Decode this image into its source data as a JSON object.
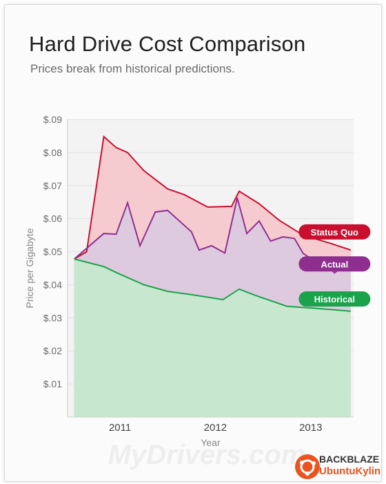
{
  "header": {
    "title": "Hard Drive Cost Comparison",
    "subtitle": "Prices break from historical predictions."
  },
  "colors": {
    "status_quo": "#c8102e",
    "actual": "#8e2f8f",
    "historical": "#1aa34a",
    "status_quo_fill": "#f6c6cc",
    "actual_fill": "#dcc9df",
    "historical_fill": "#c7e8cf"
  },
  "watermark": {
    "text": "MyDrivers.com",
    "brand_top": "BACKBLAZE",
    "brand_bottom": "UbuntuKylin"
  },
  "chart_data": {
    "type": "area",
    "title": "Hard Drive Cost Comparison",
    "subtitle": "Prices break from historical predictions.",
    "xlabel": "Year",
    "ylabel": "Price per Gigabyte",
    "xlim": [
      2010.45,
      2013.45
    ],
    "ylim": [
      0,
      0.09
    ],
    "y_ticks": [
      {
        "value": 0.01,
        "label": "$.01"
      },
      {
        "value": 0.02,
        "label": "$.02"
      },
      {
        "value": 0.03,
        "label": "$.03"
      },
      {
        "value": 0.04,
        "label": "$.04"
      },
      {
        "value": 0.05,
        "label": "$.05"
      },
      {
        "value": 0.06,
        "label": "$.06"
      },
      {
        "value": 0.07,
        "label": "$.07"
      },
      {
        "value": 0.08,
        "label": "$.08"
      },
      {
        "value": 0.09,
        "label": "$.09"
      }
    ],
    "x_ticks": [
      {
        "value": 2011,
        "label": "2011"
      },
      {
        "value": 2012,
        "label": "2012"
      },
      {
        "value": 2013,
        "label": "2013"
      }
    ],
    "grid": true,
    "legend": "inline-right",
    "series": [
      {
        "name": "Status Quo",
        "color_key": "status_quo",
        "points": [
          [
            2010.52,
            0.0478
          ],
          [
            2010.65,
            0.05
          ],
          [
            2010.83,
            0.0848
          ],
          [
            2010.96,
            0.0815
          ],
          [
            2011.08,
            0.08
          ],
          [
            2011.25,
            0.0745
          ],
          [
            2011.5,
            0.069
          ],
          [
            2011.67,
            0.0673
          ],
          [
            2011.92,
            0.0635
          ],
          [
            2012.17,
            0.0637
          ],
          [
            2012.25,
            0.0683
          ],
          [
            2012.46,
            0.0645
          ],
          [
            2012.67,
            0.0595
          ],
          [
            2012.92,
            0.055
          ],
          [
            2013.21,
            0.0525
          ],
          [
            2013.42,
            0.0505
          ]
        ]
      },
      {
        "name": "Actual",
        "color_key": "actual",
        "points": [
          [
            2010.52,
            0.0478
          ],
          [
            2010.83,
            0.0555
          ],
          [
            2010.96,
            0.0553
          ],
          [
            2011.08,
            0.0648
          ],
          [
            2011.21,
            0.0518
          ],
          [
            2011.37,
            0.062
          ],
          [
            2011.5,
            0.0625
          ],
          [
            2011.75,
            0.056
          ],
          [
            2011.83,
            0.0505
          ],
          [
            2011.96,
            0.0518
          ],
          [
            2012.1,
            0.0496
          ],
          [
            2012.23,
            0.0663
          ],
          [
            2012.33,
            0.0555
          ],
          [
            2012.46,
            0.0593
          ],
          [
            2012.58,
            0.0532
          ],
          [
            2012.71,
            0.0545
          ],
          [
            2012.83,
            0.054
          ],
          [
            2012.92,
            0.0495
          ],
          [
            2013.04,
            0.0472
          ],
          [
            2013.14,
            0.0468
          ],
          [
            2013.25,
            0.0436
          ],
          [
            2013.33,
            0.0453
          ],
          [
            2013.42,
            0.0453
          ]
        ]
      },
      {
        "name": "Historical",
        "color_key": "historical",
        "points": [
          [
            2010.52,
            0.0478
          ],
          [
            2010.83,
            0.0455
          ],
          [
            2010.96,
            0.0437
          ],
          [
            2011.25,
            0.04
          ],
          [
            2011.5,
            0.038
          ],
          [
            2011.75,
            0.037
          ],
          [
            2012.08,
            0.0355
          ],
          [
            2012.25,
            0.0387
          ],
          [
            2012.42,
            0.0368
          ],
          [
            2012.75,
            0.0335
          ],
          [
            2013.08,
            0.0328
          ],
          [
            2013.42,
            0.032
          ]
        ]
      }
    ],
    "labels": [
      {
        "text": "Status Quo",
        "series": "Status Quo",
        "at": [
          2013.25,
          0.056
        ]
      },
      {
        "text": "Actual",
        "series": "Actual",
        "at": [
          2013.25,
          0.0463
        ]
      },
      {
        "text": "Historical",
        "series": "Historical",
        "at": [
          2013.25,
          0.0357
        ]
      }
    ]
  }
}
